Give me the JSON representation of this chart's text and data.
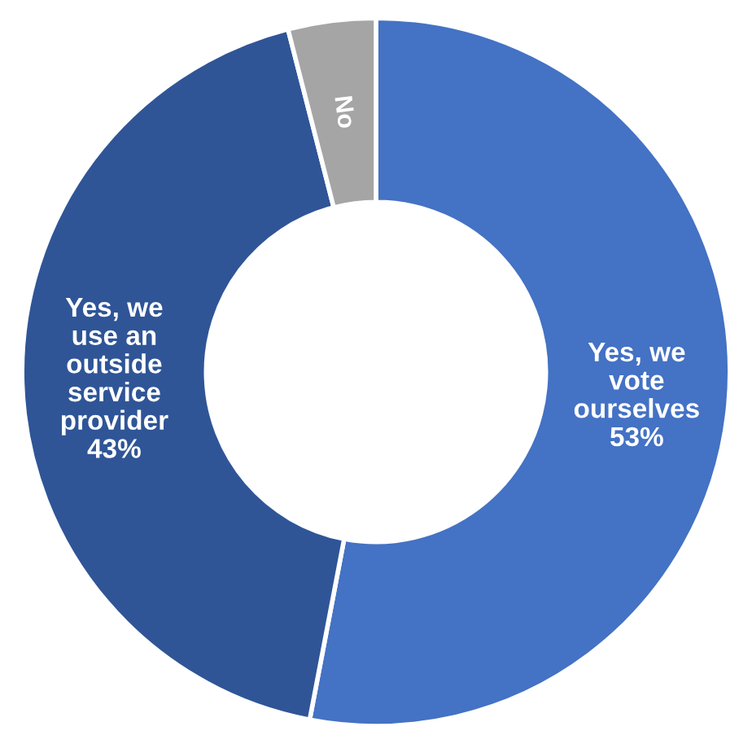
{
  "chart_data": {
    "type": "donut",
    "categories": [
      "Yes, we\nvote\nourselves",
      "Yes, we\nuse an\noutside\nservice\nprovider",
      "No"
    ],
    "values": [
      53,
      43,
      4
    ],
    "value_labels": [
      "53%",
      "43%",
      null
    ],
    "colors": [
      "#4472c4",
      "#2f5597",
      "#a5a5a5"
    ],
    "legend": false
  }
}
